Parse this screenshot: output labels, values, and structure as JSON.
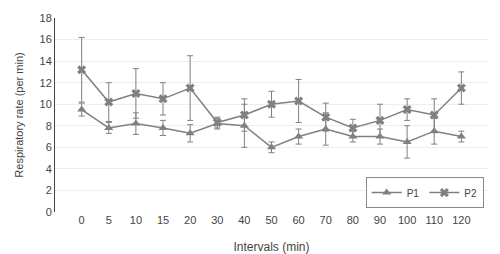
{
  "chart_data": {
    "type": "line",
    "xlabel": "Intervals (min)",
    "ylabel": "Respiratory rate (per min)",
    "categories": [
      "0",
      "5",
      "10",
      "15",
      "20",
      "30",
      "40",
      "50",
      "60",
      "70",
      "80",
      "90",
      "100",
      "110",
      "120"
    ],
    "series": [
      {
        "name": "P1",
        "color": "#808080",
        "marker": "triangle",
        "values": [
          9.5,
          7.8,
          8.2,
          7.8,
          7.3,
          8.2,
          8.0,
          6.0,
          7.0,
          7.7,
          7.0,
          7.0,
          6.5,
          7.5,
          7.0
        ],
        "errors": [
          0.6,
          0.5,
          1.0,
          0.7,
          0.8,
          0.5,
          2.0,
          0.5,
          0.7,
          1.5,
          0.5,
          0.7,
          1.5,
          1.2,
          0.5
        ]
      },
      {
        "name": "P2",
        "color": "#808080",
        "marker": "x",
        "values": [
          13.2,
          10.2,
          11.0,
          10.5,
          11.5,
          8.3,
          9.0,
          10.0,
          10.3,
          8.8,
          7.8,
          8.5,
          9.5,
          9.0,
          11.5
        ],
        "errors": [
          3.0,
          1.8,
          2.3,
          1.5,
          3.0,
          0.5,
          1.5,
          1.2,
          2.0,
          1.3,
          0.8,
          1.5,
          1.0,
          1.5,
          1.5
        ]
      }
    ],
    "ylim": [
      0,
      18
    ],
    "yticks": [
      0,
      2,
      4,
      6,
      8,
      10,
      12,
      14,
      16,
      18
    ],
    "grid": true,
    "legend": "lower right"
  }
}
